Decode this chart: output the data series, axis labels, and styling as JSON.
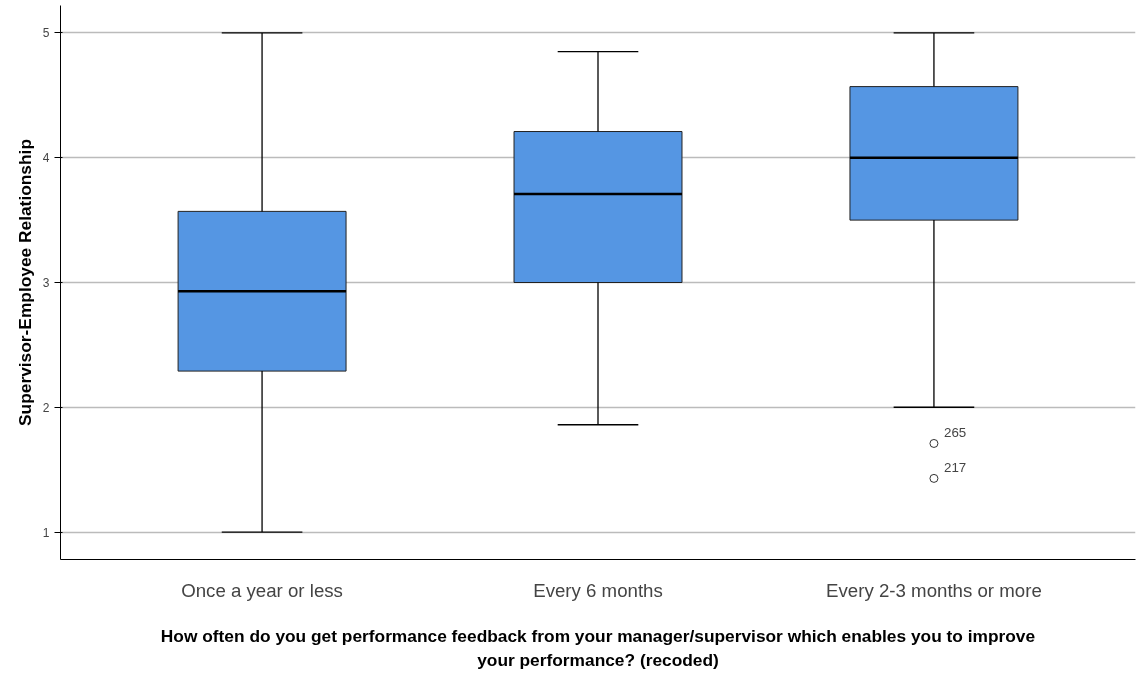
{
  "chart_data": {
    "type": "box",
    "ylabel": "Supervisor-Employee Relationship",
    "xlabel": "How often do you get performance feedback from your manager/supervisor which enables you to improve your performance? (recoded)",
    "categories": [
      "Once a year or less",
      "Every 6 months",
      "Every 2-3 months or more"
    ],
    "color": "#5596e3",
    "boxes": [
      {
        "low": 1.0,
        "q1": 2.29,
        "median": 2.93,
        "q3": 3.57,
        "high": 5.0
      },
      {
        "low": 1.86,
        "q1": 3.0,
        "median": 3.71,
        "q3": 4.21,
        "high": 4.85
      },
      {
        "low": 2.0,
        "q1": 3.5,
        "median": 4.0,
        "q3": 4.57,
        "high": 5.0,
        "outliers": [
          1.71,
          1.43
        ]
      }
    ],
    "annotations": [
      "265",
      "217"
    ],
    "ylim": [
      0.78,
      5.22
    ],
    "yticks": [
      1,
      2,
      3,
      4,
      5
    ],
    "grid": "y"
  }
}
